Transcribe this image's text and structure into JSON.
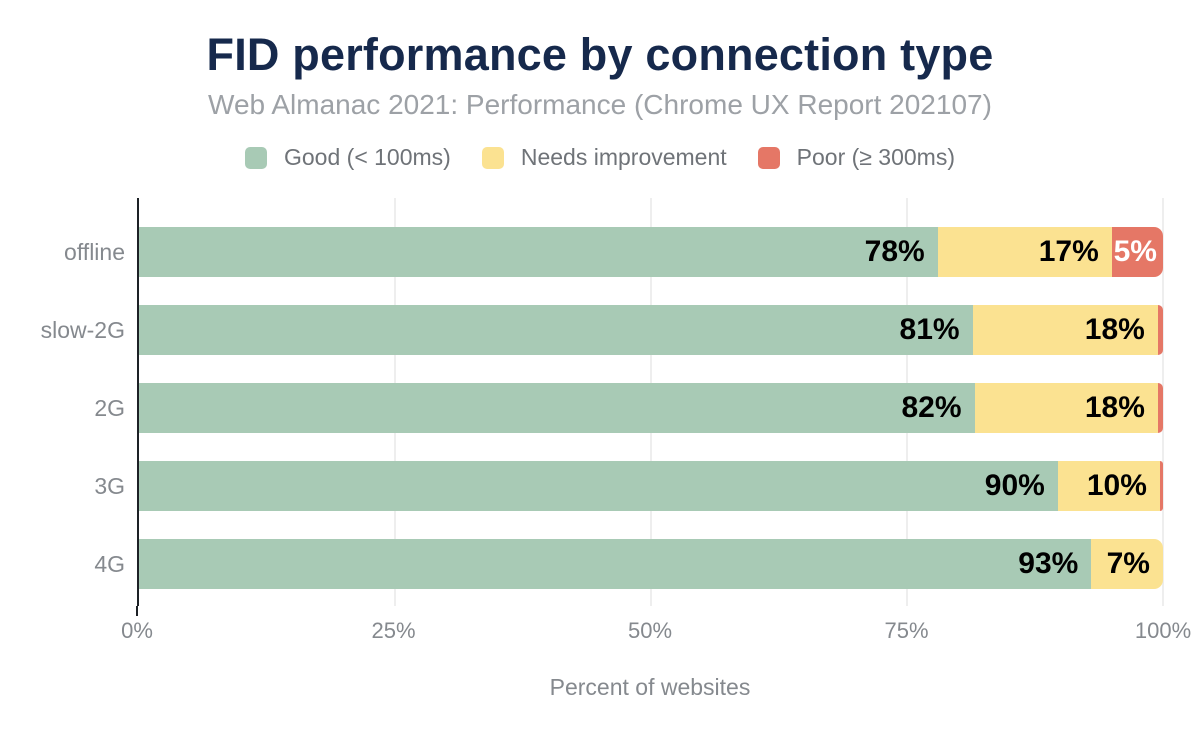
{
  "title": "FID performance by connection type",
  "subtitle": "Web Almanac 2021: Performance (Chrome UX Report 202107)",
  "legend": {
    "items": [
      {
        "key": "good",
        "label": "Good (< 100ms)",
        "color": "#a8cab5"
      },
      {
        "key": "needs-improvement",
        "label": "Needs improvement",
        "color": "#fbe291"
      },
      {
        "key": "poor",
        "label": "Poor (≥ 300ms)",
        "color": "#e57766"
      }
    ]
  },
  "chart_data": {
    "type": "bar",
    "orientation": "horizontal",
    "stacked": true,
    "title": "FID performance by connection type",
    "subtitle": "Web Almanac 2021: Performance (Chrome UX Report 202107)",
    "categories": [
      "offline",
      "slow-2G",
      "2G",
      "3G",
      "4G"
    ],
    "series": [
      {
        "name": "Good (< 100ms)",
        "color": "#a8cab5",
        "values": [
          78,
          81,
          82,
          90,
          93
        ]
      },
      {
        "name": "Needs improvement",
        "color": "#fbe291",
        "values": [
          17,
          18,
          18,
          10,
          7
        ]
      },
      {
        "name": "Poor (≥ 300ms)",
        "color": "#e57766",
        "values": [
          5,
          0.5,
          0.5,
          0.3,
          0
        ]
      }
    ],
    "bar_labels": [
      [
        "78%",
        "17%",
        "5%"
      ],
      [
        "81%",
        "18%",
        ""
      ],
      [
        "82%",
        "18%",
        ""
      ],
      [
        "90%",
        "10%",
        ""
      ],
      [
        "93%",
        "7%",
        ""
      ]
    ],
    "xlabel": "Percent of websites",
    "x_ticks": [
      {
        "label": "0%",
        "pos": 0
      },
      {
        "label": "25%",
        "pos": 25
      },
      {
        "label": "50%",
        "pos": 50
      },
      {
        "label": "75%",
        "pos": 75
      },
      {
        "label": "100%",
        "pos": 100
      }
    ],
    "xlim": [
      0,
      100
    ],
    "grid": "vertical-light",
    "legend_position": "top"
  },
  "style": {
    "title_color": "#16294c",
    "subtitle_color": "#9da1a6",
    "legend_text_color": "#6f7378",
    "axis_text_color": "#85898e",
    "axis_line_color": "#1d2126",
    "gridline_color": "#eeeeee",
    "bar_label_color": "#000000",
    "bar_label_on_poor_color": "#ffffff",
    "background": "#ffffff"
  }
}
